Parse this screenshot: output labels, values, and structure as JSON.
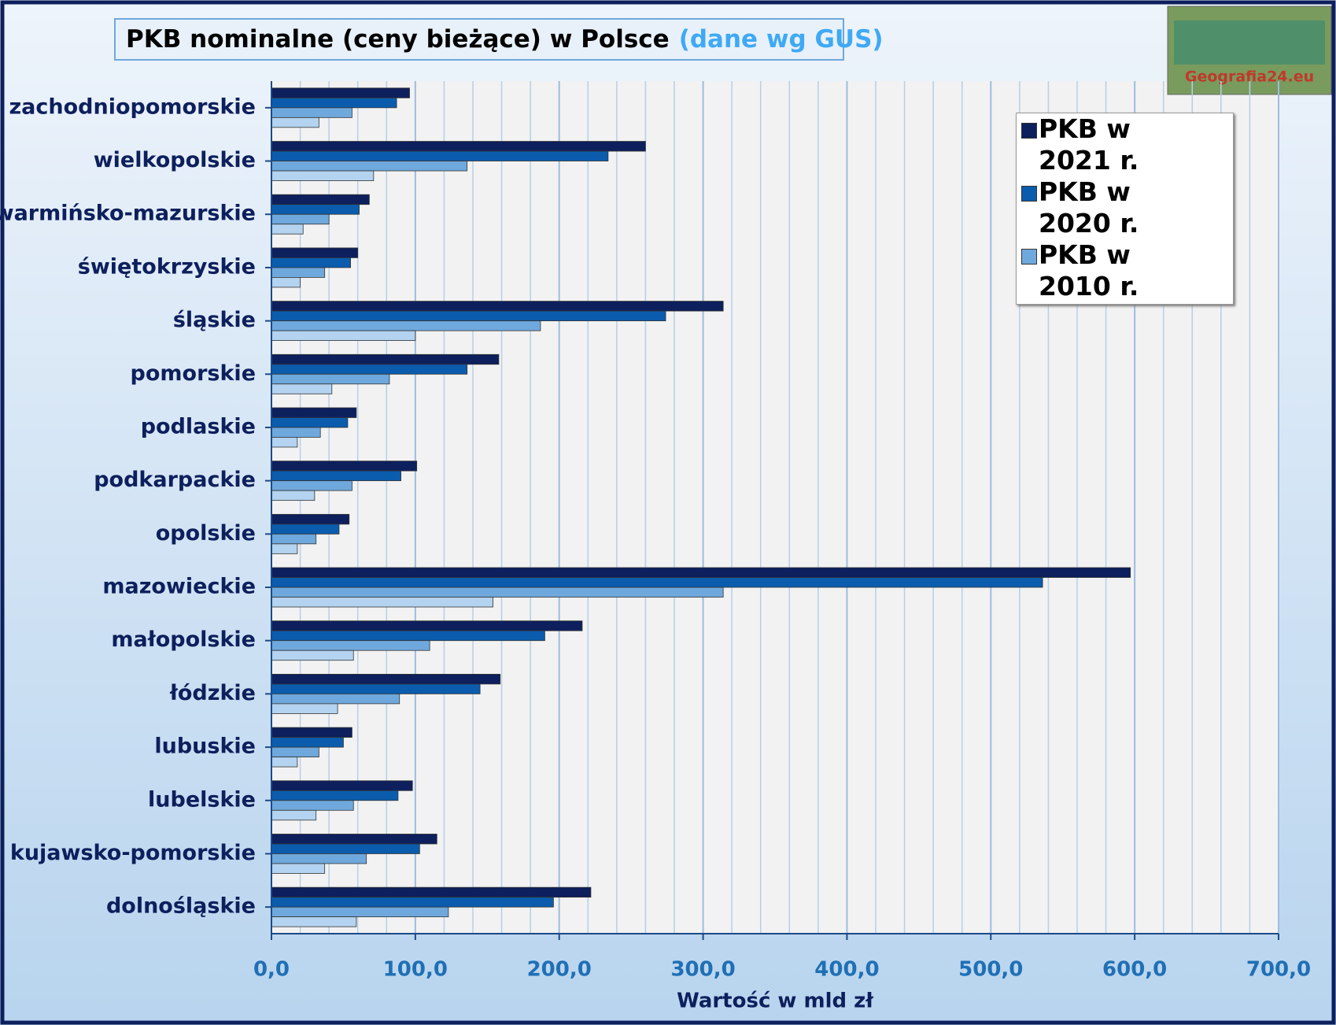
{
  "chart_data": {
    "type": "barh",
    "title": "PKB nominalne (ceny bieżące) w Polsce",
    "subtitle": "(dane wg GUS)",
    "logo_text": "Geografia24.eu",
    "xlabel": "Wartość w mld zł",
    "categories": [
      "zachodniopomorskie",
      "wielkopolskie",
      "warmińsko-mazurskie",
      "świętokrzyskie",
      "śląskie",
      "pomorskie",
      "podlaskie",
      "podkarpackie",
      "opolskie",
      "mazowieckie",
      "małopolskie",
      "łódzkie",
      "lubuskie",
      "lubelskie",
      "kujawsko-pomorskie",
      "dolnośląskie"
    ],
    "series": [
      {
        "name": "PKB w 2021 r.",
        "color": "#0d1f5c",
        "values": [
          96,
          260,
          68,
          60,
          314,
          158,
          59,
          101,
          54,
          597,
          216,
          159,
          56,
          98,
          115,
          222
        ]
      },
      {
        "name": "PKB w 2020 r.",
        "color": "#0b5cad",
        "values": [
          87,
          234,
          61,
          55,
          274,
          136,
          53,
          90,
          47,
          536,
          190,
          145,
          50,
          88,
          103,
          196
        ]
      },
      {
        "name": "PKB w 2010 r.",
        "color": "#6fa8dc",
        "values": [
          56,
          136,
          40,
          37,
          187,
          82,
          34,
          56,
          31,
          314,
          110,
          89,
          33,
          57,
          66,
          123
        ]
      },
      {
        "color": "#b3d3f0",
        "values": [
          33,
          71,
          22,
          20,
          100,
          42,
          18,
          30,
          18,
          154,
          57,
          46,
          18,
          31,
          37,
          59
        ]
      }
    ],
    "xlim": [
      0,
      700
    ],
    "xticks": [
      {
        "value": 0,
        "label": "0,0"
      },
      {
        "value": 100,
        "label": "100,0"
      },
      {
        "value": 200,
        "label": "200,0"
      },
      {
        "value": 300,
        "label": "300,0"
      },
      {
        "value": 400,
        "label": "400,0"
      },
      {
        "value": 500,
        "label": "500,0"
      },
      {
        "value": 600,
        "label": "600,0"
      },
      {
        "value": 700,
        "label": "700,0"
      }
    ],
    "minor_grid_step": 20,
    "grid": true
  }
}
